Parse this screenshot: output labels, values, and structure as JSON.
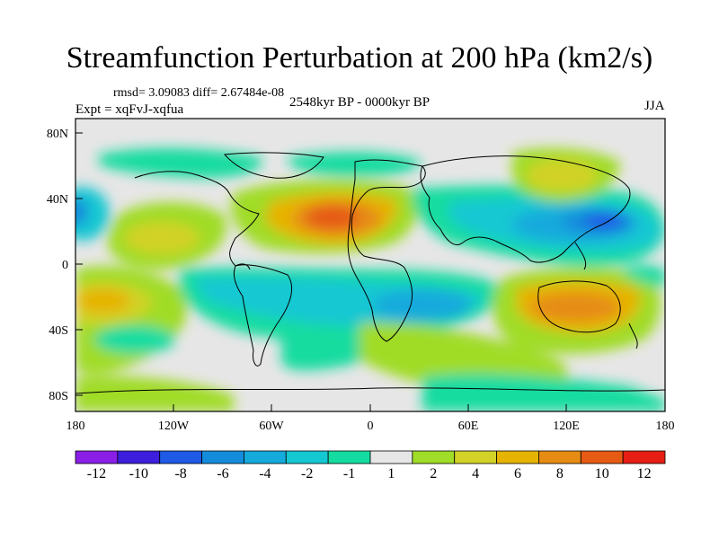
{
  "title": "Streamfunction Perturbation at 200 hPa (km2/s)",
  "stats": "rmsd= 3.09083 diff= 2.67484e-08",
  "experiment": "Expt = xqFvJ-xqfua",
  "period": "2548kyr BP - 0000kyr BP",
  "season": "JJA",
  "map": {
    "lat_ticks": [
      "80N",
      "40N",
      "0",
      "40S",
      "80S"
    ],
    "lon_ticks": [
      "180",
      "120W",
      "60W",
      "0",
      "60E",
      "120E",
      "180"
    ]
  },
  "colorbar": {
    "labels": [
      "-12",
      "-10",
      "-8",
      "-6",
      "-4",
      "-2",
      "-1",
      "1",
      "2",
      "4",
      "6",
      "8",
      "10",
      "12"
    ],
    "colors": [
      "#8a1ee6",
      "#3c1edc",
      "#1e5ae6",
      "#148cdc",
      "#14aadc",
      "#14c8d2",
      "#14dca0",
      "#e6e6e6",
      "#a0dc28",
      "#d2d228",
      "#e6b400",
      "#e68c14",
      "#e65a14",
      "#e61e14"
    ]
  }
}
